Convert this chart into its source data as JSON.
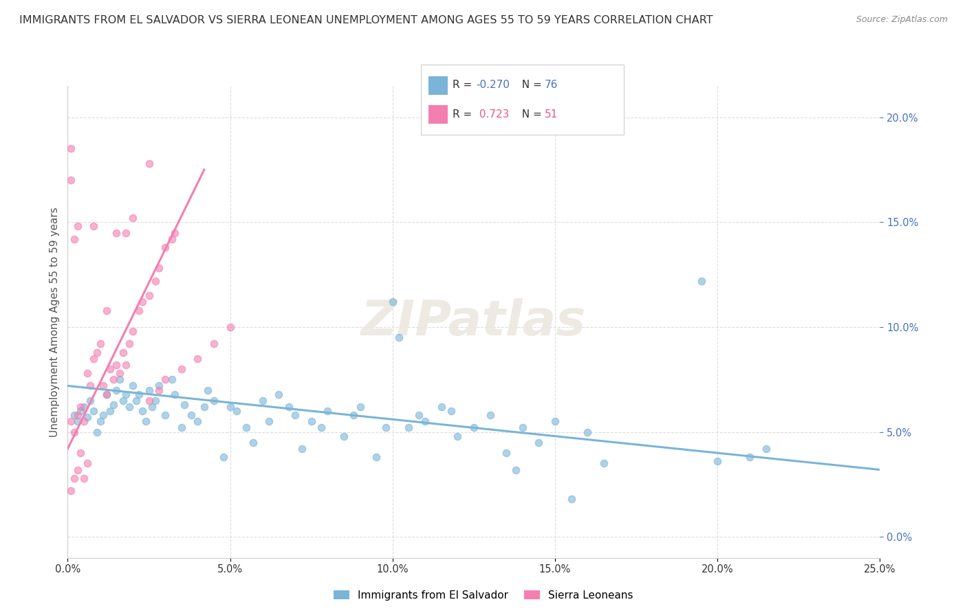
{
  "title": "IMMIGRANTS FROM EL SALVADOR VS SIERRA LEONEAN UNEMPLOYMENT AMONG AGES 55 TO 59 YEARS CORRELATION CHART",
  "source": "Source: ZipAtlas.com",
  "ylabel": "Unemployment Among Ages 55 to 59 years",
  "xlim": [
    0.0,
    0.25
  ],
  "ylim": [
    -0.01,
    0.215
  ],
  "yticks": [
    0.0,
    0.05,
    0.1,
    0.15,
    0.2
  ],
  "ytick_labels": [
    "0.0%",
    "5.0%",
    "10.0%",
    "15.0%",
    "20.0%"
  ],
  "xticks": [
    0.0,
    0.05,
    0.1,
    0.15,
    0.2,
    0.25
  ],
  "xtick_labels": [
    "0.0%",
    "5.0%",
    "10.0%",
    "15.0%",
    "20.0%",
    "25.0%"
  ],
  "blue_color": "#7ab4d8",
  "pink_color": "#f47eb0",
  "legend_r_blue": "-0.270",
  "legend_n_blue": "76",
  "legend_r_pink": "0.723",
  "legend_n_pink": "51",
  "watermark_text": "ZIPatlas",
  "blue_scatter": [
    [
      0.002,
      0.058
    ],
    [
      0.003,
      0.055
    ],
    [
      0.004,
      0.06
    ],
    [
      0.005,
      0.062
    ],
    [
      0.006,
      0.057
    ],
    [
      0.007,
      0.065
    ],
    [
      0.008,
      0.06
    ],
    [
      0.009,
      0.05
    ],
    [
      0.01,
      0.055
    ],
    [
      0.011,
      0.058
    ],
    [
      0.012,
      0.068
    ],
    [
      0.013,
      0.06
    ],
    [
      0.014,
      0.063
    ],
    [
      0.015,
      0.07
    ],
    [
      0.016,
      0.075
    ],
    [
      0.017,
      0.065
    ],
    [
      0.018,
      0.068
    ],
    [
      0.019,
      0.062
    ],
    [
      0.02,
      0.072
    ],
    [
      0.021,
      0.065
    ],
    [
      0.022,
      0.068
    ],
    [
      0.023,
      0.06
    ],
    [
      0.024,
      0.055
    ],
    [
      0.025,
      0.07
    ],
    [
      0.026,
      0.062
    ],
    [
      0.027,
      0.065
    ],
    [
      0.028,
      0.072
    ],
    [
      0.03,
      0.058
    ],
    [
      0.032,
      0.075
    ],
    [
      0.033,
      0.068
    ],
    [
      0.035,
      0.052
    ],
    [
      0.036,
      0.063
    ],
    [
      0.038,
      0.058
    ],
    [
      0.04,
      0.055
    ],
    [
      0.042,
      0.062
    ],
    [
      0.043,
      0.07
    ],
    [
      0.045,
      0.065
    ],
    [
      0.048,
      0.038
    ],
    [
      0.05,
      0.062
    ],
    [
      0.052,
      0.06
    ],
    [
      0.055,
      0.052
    ],
    [
      0.057,
      0.045
    ],
    [
      0.06,
      0.065
    ],
    [
      0.062,
      0.055
    ],
    [
      0.065,
      0.068
    ],
    [
      0.068,
      0.062
    ],
    [
      0.07,
      0.058
    ],
    [
      0.072,
      0.042
    ],
    [
      0.075,
      0.055
    ],
    [
      0.078,
      0.052
    ],
    [
      0.08,
      0.06
    ],
    [
      0.085,
      0.048
    ],
    [
      0.088,
      0.058
    ],
    [
      0.09,
      0.062
    ],
    [
      0.095,
      0.038
    ],
    [
      0.098,
      0.052
    ],
    [
      0.1,
      0.112
    ],
    [
      0.102,
      0.095
    ],
    [
      0.105,
      0.052
    ],
    [
      0.108,
      0.058
    ],
    [
      0.11,
      0.055
    ],
    [
      0.115,
      0.062
    ],
    [
      0.118,
      0.06
    ],
    [
      0.12,
      0.048
    ],
    [
      0.125,
      0.052
    ],
    [
      0.13,
      0.058
    ],
    [
      0.135,
      0.04
    ],
    [
      0.138,
      0.032
    ],
    [
      0.14,
      0.052
    ],
    [
      0.145,
      0.045
    ],
    [
      0.15,
      0.055
    ],
    [
      0.155,
      0.018
    ],
    [
      0.16,
      0.05
    ],
    [
      0.165,
      0.035
    ],
    [
      0.195,
      0.122
    ],
    [
      0.2,
      0.036
    ],
    [
      0.21,
      0.038
    ],
    [
      0.215,
      0.042
    ]
  ],
  "pink_scatter": [
    [
      0.001,
      0.055
    ],
    [
      0.002,
      0.05
    ],
    [
      0.003,
      0.058
    ],
    [
      0.004,
      0.062
    ],
    [
      0.005,
      0.055
    ],
    [
      0.006,
      0.078
    ],
    [
      0.007,
      0.072
    ],
    [
      0.008,
      0.085
    ],
    [
      0.009,
      0.088
    ],
    [
      0.01,
      0.092
    ],
    [
      0.011,
      0.072
    ],
    [
      0.012,
      0.068
    ],
    [
      0.013,
      0.08
    ],
    [
      0.014,
      0.075
    ],
    [
      0.015,
      0.082
    ],
    [
      0.016,
      0.078
    ],
    [
      0.017,
      0.088
    ],
    [
      0.018,
      0.082
    ],
    [
      0.019,
      0.092
    ],
    [
      0.02,
      0.098
    ],
    [
      0.022,
      0.108
    ],
    [
      0.023,
      0.112
    ],
    [
      0.025,
      0.115
    ],
    [
      0.027,
      0.122
    ],
    [
      0.028,
      0.128
    ],
    [
      0.03,
      0.138
    ],
    [
      0.032,
      0.142
    ],
    [
      0.033,
      0.145
    ],
    [
      0.001,
      0.17
    ],
    [
      0.002,
      0.142
    ],
    [
      0.015,
      0.145
    ],
    [
      0.02,
      0.152
    ],
    [
      0.025,
      0.178
    ],
    [
      0.001,
      0.022
    ],
    [
      0.002,
      0.028
    ],
    [
      0.003,
      0.032
    ],
    [
      0.004,
      0.04
    ],
    [
      0.005,
      0.028
    ],
    [
      0.006,
      0.035
    ],
    [
      0.025,
      0.065
    ],
    [
      0.028,
      0.07
    ],
    [
      0.03,
      0.075
    ],
    [
      0.035,
      0.08
    ],
    [
      0.04,
      0.085
    ],
    [
      0.045,
      0.092
    ],
    [
      0.05,
      0.1
    ],
    [
      0.018,
      0.145
    ],
    [
      0.001,
      0.185
    ],
    [
      0.003,
      0.148
    ],
    [
      0.008,
      0.148
    ],
    [
      0.012,
      0.108
    ]
  ],
  "blue_line_x": [
    0.0,
    0.25
  ],
  "blue_line_y": [
    0.072,
    0.032
  ],
  "pink_line_x": [
    0.0,
    0.042
  ],
  "pink_line_y": [
    0.042,
    0.175
  ],
  "background_color": "#ffffff",
  "grid_color": "#dddddd",
  "title_fontsize": 11.5,
  "axis_label_fontsize": 11,
  "tick_fontsize": 10.5,
  "legend_fontsize": 11,
  "tick_color_right": "#4472c4",
  "r_color_blue": "#4472c4",
  "r_color_pink": "#e8568c"
}
